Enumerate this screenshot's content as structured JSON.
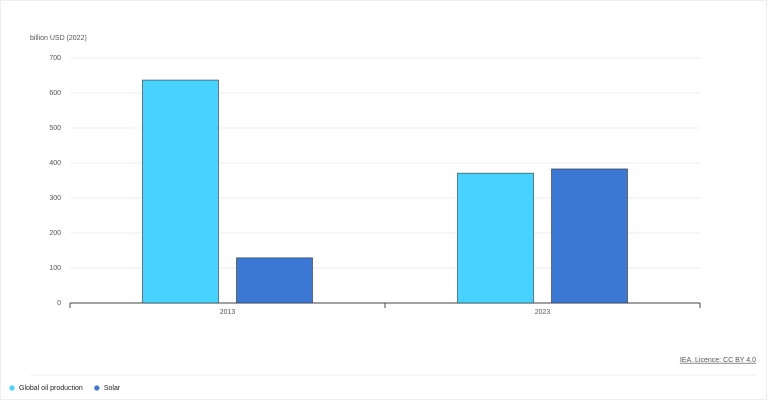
{
  "chart_data": {
    "type": "bar",
    "ylabel": "billion USD (2022)",
    "categories": [
      "2013",
      "2023"
    ],
    "series": [
      {
        "name": "Global oil production",
        "color": "#47d3ff",
        "values": [
          637,
          371
        ]
      },
      {
        "name": "Solar",
        "color": "#3b78d4",
        "values": [
          129,
          383
        ]
      }
    ],
    "ylim": [
      0,
      700
    ],
    "yticks": [
      0,
      100,
      200,
      300,
      400,
      500,
      600,
      700
    ],
    "grid": true,
    "legend": "bottom-left",
    "source": "IEA. Licence: CC BY 4.0"
  }
}
